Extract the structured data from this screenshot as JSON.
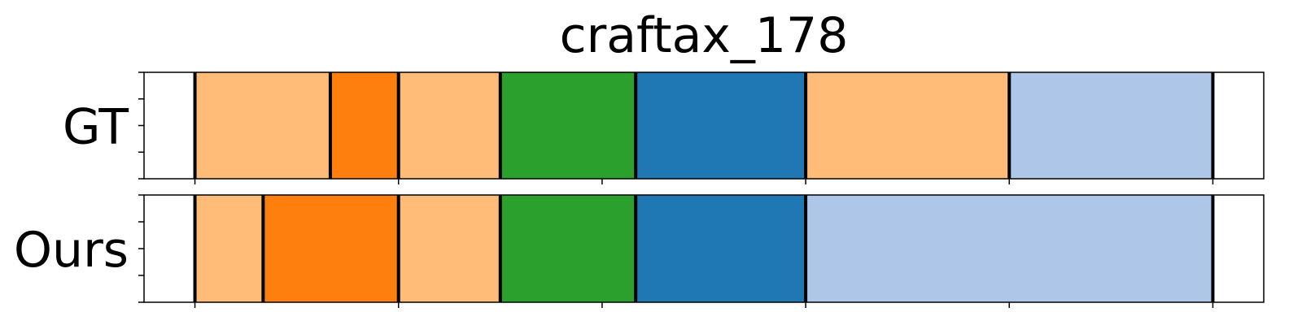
{
  "chart_data": {
    "type": "bar",
    "title": "craftax_178",
    "xlabel": "",
    "ylabel": "",
    "xlim": [
      0,
      110
    ],
    "x_ticks": [
      5,
      25,
      45,
      65,
      85,
      105
    ],
    "y_ticks": [
      0,
      0.25,
      0.5,
      0.75,
      1
    ],
    "tick_labels_shown": false,
    "grid": false,
    "legend": "none",
    "colors": {
      "light_orange": "#ffbb78",
      "orange": "#ff7f0e",
      "green": "#2ca02c",
      "blue": "#1f77b4",
      "light_blue": "#aec7e8",
      "boundary": "#000000"
    },
    "rows": [
      {
        "label": "GT",
        "segments": [
          {
            "start": 5.0,
            "end": 18.3,
            "color": "light_orange"
          },
          {
            "start": 18.3,
            "end": 25.0,
            "color": "orange"
          },
          {
            "start": 25.0,
            "end": 35.0,
            "color": "light_orange"
          },
          {
            "start": 35.0,
            "end": 48.3,
            "color": "green"
          },
          {
            "start": 48.3,
            "end": 65.0,
            "color": "blue"
          },
          {
            "start": 65.0,
            "end": 85.0,
            "color": "light_orange"
          },
          {
            "start": 85.0,
            "end": 105.0,
            "color": "light_blue"
          }
        ]
      },
      {
        "label": "Ours",
        "segments": [
          {
            "start": 5.0,
            "end": 11.7,
            "color": "light_orange"
          },
          {
            "start": 11.7,
            "end": 25.0,
            "color": "orange"
          },
          {
            "start": 25.0,
            "end": 35.0,
            "color": "light_orange"
          },
          {
            "start": 35.0,
            "end": 48.3,
            "color": "green"
          },
          {
            "start": 48.3,
            "end": 65.0,
            "color": "blue"
          },
          {
            "start": 65.0,
            "end": 105.0,
            "color": "light_blue"
          }
        ]
      }
    ]
  }
}
